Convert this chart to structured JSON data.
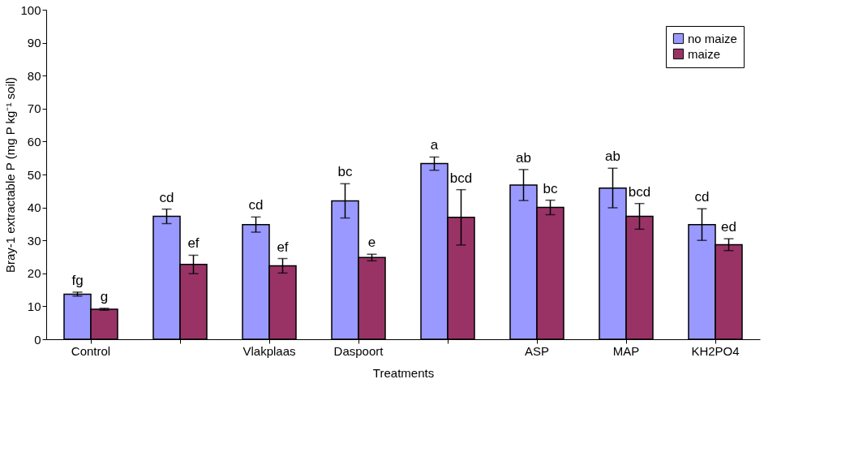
{
  "chart_data": {
    "type": "bar",
    "xlabel": "Treatments",
    "ylabel": "Bray-1 extractable P (mg P kg⁻¹ soil)",
    "categories": [
      "Control",
      null,
      "Vlakplaas",
      "Daspoort",
      null,
      "ASP",
      "MAP",
      "KH2PO4"
    ],
    "series": [
      {
        "name": "no maize",
        "color": "#9999ff",
        "values": [
          13.7,
          37.3,
          34.8,
          42,
          53.3,
          46.8,
          45.9,
          34.8
        ],
        "errors": [
          0.6,
          2.2,
          2.3,
          5.2,
          2,
          4.7,
          6,
          4.8
        ],
        "value_labels": [
          "fg",
          "cd",
          "cd",
          "bc",
          "a",
          "ab",
          "ab",
          "cd"
        ]
      },
      {
        "name": "maize",
        "color": "#993366",
        "values": [
          9.1,
          22.7,
          22.3,
          24.8,
          37,
          40,
          37.3,
          28.7
        ],
        "errors": [
          0.3,
          2.8,
          2.2,
          1,
          8.4,
          2.2,
          3.9,
          1.8
        ],
        "value_labels": [
          "g",
          "ef",
          "ef",
          "e",
          "bcd",
          "bc",
          "bcd",
          "ed"
        ]
      }
    ],
    "ylim": [
      0,
      100
    ],
    "yticks": [
      0,
      10,
      20,
      30,
      40,
      50,
      60,
      70,
      80,
      90,
      100
    ],
    "grid": false,
    "legend": "top right"
  }
}
